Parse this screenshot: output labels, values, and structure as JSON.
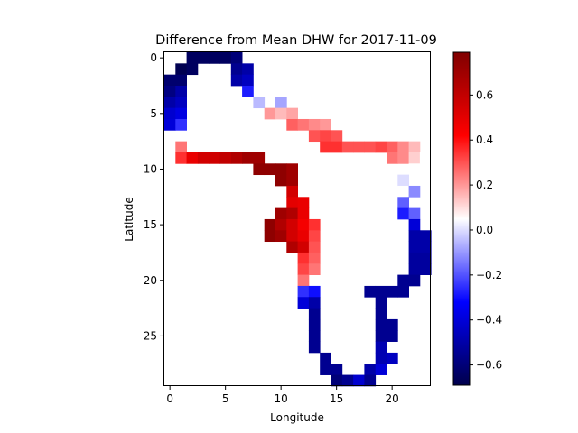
{
  "chart_data": {
    "type": "heatmap",
    "title": "Difference from Mean DHW for 2017-11-09",
    "xlabel": "Longitude",
    "ylabel": "Latitude",
    "x_ticks": [
      0,
      5,
      10,
      15,
      20
    ],
    "y_ticks": [
      0,
      5,
      10,
      15,
      20,
      25
    ],
    "grid": false,
    "colormap": "seismic",
    "colorbar": {
      "vmin": -0.69,
      "vmax": 0.79,
      "ticks": [
        -0.6,
        -0.4,
        -0.2,
        0.0,
        0.2,
        0.4,
        0.6
      ],
      "tick_labels": [
        "−0.6",
        "−0.4",
        "−0.2",
        "0.0",
        "0.2",
        "0.4",
        "0.6"
      ]
    },
    "grid_shape": {
      "rows": 30,
      "cols": 24
    },
    "cells": [
      [
        0,
        2,
        -0.65
      ],
      [
        0,
        3,
        -0.65
      ],
      [
        0,
        4,
        -0.65
      ],
      [
        0,
        5,
        -0.65
      ],
      [
        0,
        6,
        -0.6
      ],
      [
        1,
        1,
        -0.68
      ],
      [
        1,
        2,
        -0.65
      ],
      [
        1,
        6,
        -0.55
      ],
      [
        1,
        7,
        -0.5
      ],
      [
        2,
        0,
        -0.62
      ],
      [
        2,
        1,
        -0.62
      ],
      [
        2,
        6,
        -0.5
      ],
      [
        2,
        7,
        -0.45
      ],
      [
        3,
        0,
        -0.58
      ],
      [
        3,
        1,
        -0.5
      ],
      [
        3,
        7,
        -0.28
      ],
      [
        4,
        0,
        -0.5
      ],
      [
        4,
        1,
        -0.45
      ],
      [
        4,
        8,
        -0.05
      ],
      [
        4,
        10,
        -0.08
      ],
      [
        5,
        0,
        -0.42
      ],
      [
        5,
        1,
        -0.38
      ],
      [
        5,
        9,
        0.2
      ],
      [
        5,
        10,
        0.15
      ],
      [
        5,
        11,
        0.18
      ],
      [
        6,
        0,
        -0.4
      ],
      [
        6,
        1,
        -0.25
      ],
      [
        6,
        11,
        0.28
      ],
      [
        6,
        12,
        0.25
      ],
      [
        6,
        13,
        0.22
      ],
      [
        6,
        14,
        0.2
      ],
      [
        7,
        13,
        0.3
      ],
      [
        7,
        14,
        0.32
      ],
      [
        7,
        15,
        0.3
      ],
      [
        8,
        1,
        0.25
      ],
      [
        8,
        14,
        0.35
      ],
      [
        8,
        15,
        0.35
      ],
      [
        8,
        16,
        0.3
      ],
      [
        8,
        17,
        0.3
      ],
      [
        8,
        18,
        0.3
      ],
      [
        8,
        19,
        0.32
      ],
      [
        8,
        20,
        0.28
      ],
      [
        8,
        21,
        0.22
      ],
      [
        8,
        22,
        0.15
      ],
      [
        9,
        1,
        0.35
      ],
      [
        9,
        2,
        0.48
      ],
      [
        9,
        3,
        0.55
      ],
      [
        9,
        4,
        0.56
      ],
      [
        9,
        5,
        0.6
      ],
      [
        9,
        6,
        0.65
      ],
      [
        9,
        7,
        0.7
      ],
      [
        9,
        8,
        0.7
      ],
      [
        9,
        20,
        0.25
      ],
      [
        9,
        21,
        0.22
      ],
      [
        9,
        22,
        0.12
      ],
      [
        9,
        23,
        0.05
      ],
      [
        10,
        8,
        0.75
      ],
      [
        10,
        9,
        0.75
      ],
      [
        10,
        10,
        0.75
      ],
      [
        10,
        11,
        0.7
      ],
      [
        10,
        22,
        0.05
      ],
      [
        11,
        10,
        0.75
      ],
      [
        11,
        11,
        0.7
      ],
      [
        11,
        21,
        0.0
      ],
      [
        12,
        11,
        0.55
      ],
      [
        12,
        21,
        0.05
      ],
      [
        12,
        22,
        -0.12
      ],
      [
        13,
        11,
        0.5
      ],
      [
        13,
        12,
        0.48
      ],
      [
        13,
        21,
        -0.18
      ],
      [
        14,
        10,
        0.7
      ],
      [
        14,
        11,
        0.65
      ],
      [
        14,
        12,
        0.48
      ],
      [
        14,
        21,
        -0.28
      ],
      [
        14,
        22,
        -0.18
      ],
      [
        15,
        9,
        0.75
      ],
      [
        15,
        10,
        0.65
      ],
      [
        15,
        11,
        0.55
      ],
      [
        15,
        12,
        0.45
      ],
      [
        15,
        13,
        0.35
      ],
      [
        15,
        22,
        -0.4
      ],
      [
        16,
        9,
        0.75
      ],
      [
        16,
        10,
        0.7
      ],
      [
        16,
        11,
        0.55
      ],
      [
        16,
        12,
        0.48
      ],
      [
        16,
        13,
        0.32
      ],
      [
        16,
        22,
        -0.5
      ],
      [
        16,
        23,
        -0.5
      ],
      [
        17,
        11,
        0.65
      ],
      [
        17,
        12,
        0.55
      ],
      [
        17,
        13,
        0.3
      ],
      [
        17,
        22,
        -0.5
      ],
      [
        17,
        23,
        -0.5
      ],
      [
        18,
        12,
        0.35
      ],
      [
        18,
        13,
        0.28
      ],
      [
        18,
        22,
        -0.52
      ],
      [
        18,
        23,
        -0.52
      ],
      [
        19,
        12,
        0.32
      ],
      [
        19,
        13,
        0.25
      ],
      [
        19,
        22,
        -0.52
      ],
      [
        19,
        23,
        -0.52
      ],
      [
        20,
        12,
        0.25
      ],
      [
        20,
        21,
        -0.55
      ],
      [
        20,
        22,
        -0.55
      ],
      [
        21,
        12,
        -0.25
      ],
      [
        21,
        13,
        -0.3
      ],
      [
        21,
        18,
        -0.55
      ],
      [
        21,
        19,
        -0.55
      ],
      [
        21,
        20,
        -0.55
      ],
      [
        21,
        21,
        -0.55
      ],
      [
        22,
        12,
        -0.4
      ],
      [
        22,
        13,
        -0.5
      ],
      [
        22,
        19,
        -0.55
      ],
      [
        23,
        13,
        -0.55
      ],
      [
        23,
        19,
        -0.55
      ],
      [
        24,
        13,
        -0.55
      ],
      [
        24,
        19,
        -0.55
      ],
      [
        24,
        20,
        -0.55
      ],
      [
        25,
        13,
        -0.55
      ],
      [
        25,
        19,
        -0.55
      ],
      [
        25,
        20,
        -0.55
      ],
      [
        26,
        13,
        -0.55
      ],
      [
        26,
        19,
        -0.48
      ],
      [
        27,
        14,
        -0.55
      ],
      [
        27,
        19,
        -0.48
      ],
      [
        27,
        20,
        -0.45
      ],
      [
        28,
        14,
        -0.55
      ],
      [
        28,
        15,
        -0.55
      ],
      [
        28,
        18,
        -0.5
      ],
      [
        28,
        19,
        -0.4
      ],
      [
        29,
        15,
        -0.6
      ],
      [
        29,
        16,
        -0.55
      ],
      [
        29,
        17,
        -0.42
      ],
      [
        29,
        18,
        -0.55
      ]
    ]
  }
}
